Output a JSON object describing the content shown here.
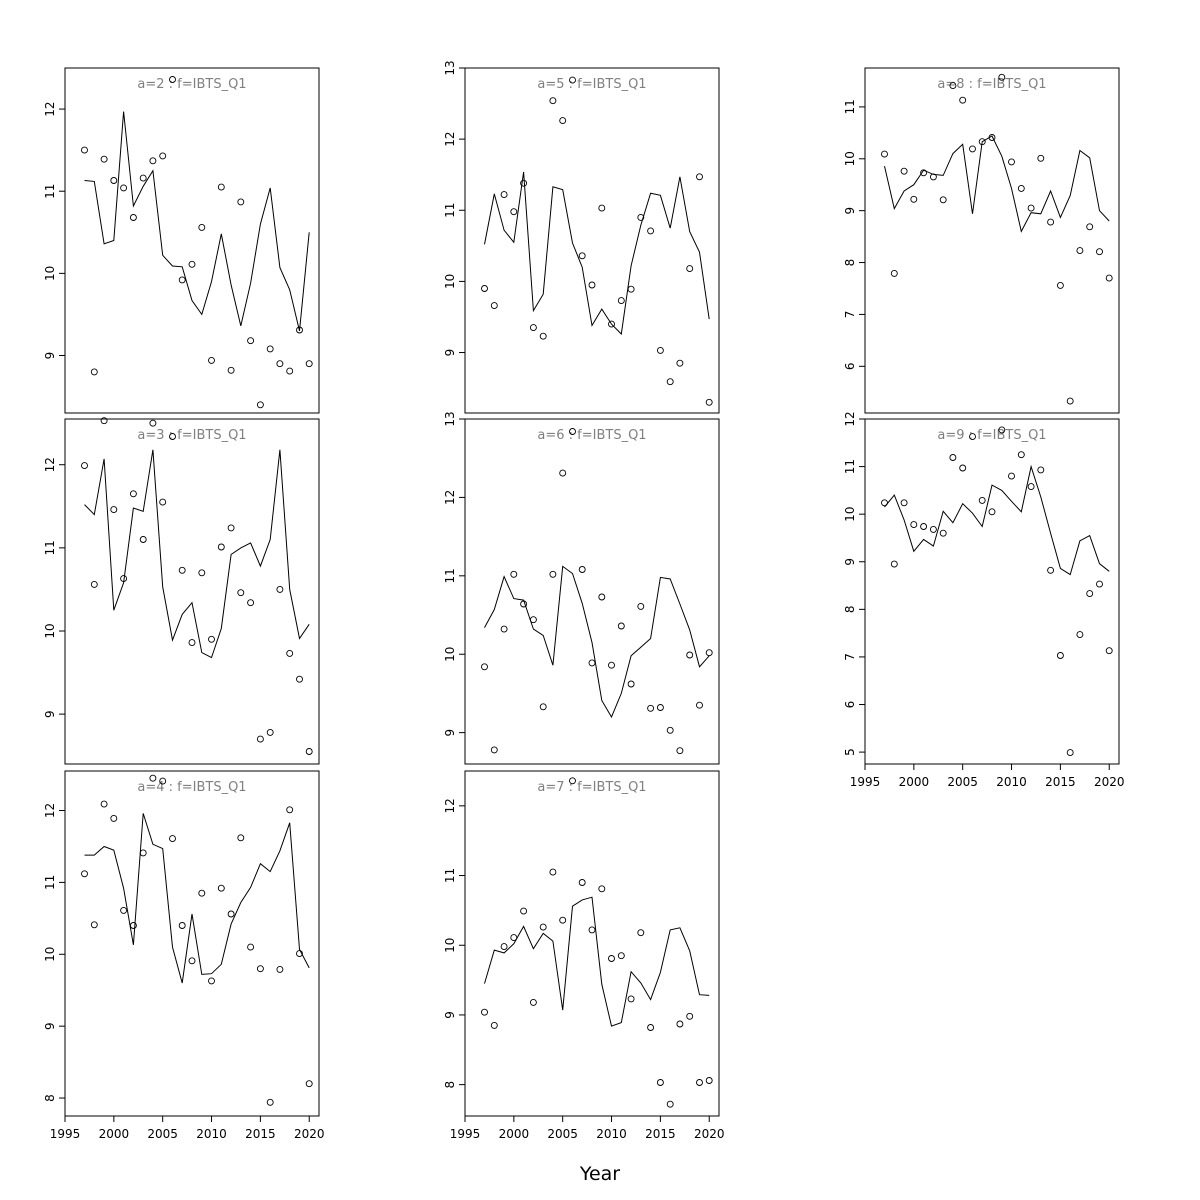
{
  "figure": {
    "xlabel": "Year"
  },
  "chart_data": [
    {
      "type": "line",
      "title": "a=2 : f=IBTS_Q1",
      "xlabel": "",
      "ylabel": "",
      "xlim": [
        1995,
        2021
      ],
      "ylim": [
        8.3,
        12.5
      ],
      "xticks": [
        1995,
        2000,
        2005,
        2010,
        2015,
        2020
      ],
      "yticks": [
        9,
        10,
        11,
        12
      ],
      "show_xticks": false,
      "grid": false,
      "x": [
        1997,
        1998,
        1999,
        2000,
        2001,
        2002,
        2003,
        2004,
        2005,
        2006,
        2007,
        2008,
        2009,
        2010,
        2011,
        2012,
        2013,
        2014,
        2015,
        2016,
        2017,
        2018,
        2019,
        2020
      ],
      "series": [
        {
          "style": "line",
          "values": [
            11.13,
            11.12,
            10.36,
            10.4,
            11.97,
            10.82,
            11.06,
            11.25,
            10.22,
            10.09,
            10.08,
            9.67,
            9.5,
            9.9,
            10.48,
            9.86,
            9.36,
            9.88,
            10.6,
            11.04,
            10.07,
            9.8,
            9.3,
            10.5
          ]
        },
        {
          "style": "points",
          "values": [
            11.5,
            8.8,
            11.39,
            11.13,
            11.04,
            10.68,
            11.16,
            11.37,
            11.43,
            12.36,
            9.92,
            10.11,
            10.56,
            8.94,
            11.05,
            8.82,
            10.87,
            9.18,
            8.4,
            9.08,
            8.9,
            8.81,
            9.31,
            8.9
          ]
        }
      ]
    },
    {
      "type": "line",
      "title": "a=3 : f=IBTS_Q1",
      "xlabel": "",
      "ylabel": "",
      "xlim": [
        1995,
        2021
      ],
      "ylim": [
        8.4,
        12.55
      ],
      "xticks": [
        1995,
        2000,
        2005,
        2010,
        2015,
        2020
      ],
      "yticks": [
        9,
        10,
        11,
        12
      ],
      "show_xticks": false,
      "grid": false,
      "x": [
        1997,
        1998,
        1999,
        2000,
        2001,
        2002,
        2003,
        2004,
        2005,
        2006,
        2007,
        2008,
        2009,
        2010,
        2011,
        2012,
        2013,
        2014,
        2015,
        2016,
        2017,
        2018,
        2019,
        2020
      ],
      "series": [
        {
          "style": "line",
          "values": [
            11.52,
            11.4,
            12.07,
            10.25,
            10.58,
            11.48,
            11.44,
            12.18,
            10.53,
            9.89,
            10.2,
            10.34,
            9.74,
            9.68,
            10.03,
            10.92,
            11.0,
            11.06,
            10.78,
            11.1,
            12.18,
            10.5,
            9.91,
            10.08
          ]
        },
        {
          "style": "points",
          "values": [
            11.99,
            10.56,
            12.53,
            11.46,
            10.63,
            11.65,
            11.1,
            12.5,
            11.55,
            12.34,
            10.73,
            9.86,
            10.7,
            9.9,
            11.01,
            11.24,
            10.46,
            10.34,
            8.7,
            8.78,
            10.5,
            9.73,
            9.42,
            8.55
          ]
        }
      ]
    },
    {
      "type": "line",
      "title": "a=4 : f=IBTS_Q1",
      "xlabel": "",
      "ylabel": "",
      "xlim": [
        1995,
        2021
      ],
      "ylim": [
        7.75,
        12.55
      ],
      "xticks": [
        1995,
        2000,
        2005,
        2010,
        2015,
        2020
      ],
      "yticks": [
        8,
        9,
        10,
        11,
        12
      ],
      "show_xticks": true,
      "grid": false,
      "x": [
        1997,
        1998,
        1999,
        2000,
        2001,
        2002,
        2003,
        2004,
        2005,
        2006,
        2007,
        2008,
        2009,
        2010,
        2011,
        2012,
        2013,
        2014,
        2015,
        2016,
        2017,
        2018,
        2019,
        2020
      ],
      "series": [
        {
          "style": "line",
          "values": [
            11.38,
            11.38,
            11.5,
            11.45,
            10.92,
            10.13,
            11.96,
            11.53,
            11.47,
            10.1,
            9.6,
            10.56,
            9.72,
            9.73,
            9.86,
            10.42,
            10.72,
            10.93,
            11.26,
            11.15,
            11.44,
            11.83,
            10.07,
            9.81
          ]
        },
        {
          "style": "points",
          "values": [
            11.12,
            10.41,
            12.09,
            11.89,
            10.61,
            10.4,
            11.41,
            12.45,
            12.41,
            11.61,
            10.4,
            9.91,
            10.85,
            9.63,
            10.92,
            10.56,
            11.62,
            10.1,
            9.8,
            7.94,
            9.79,
            12.01,
            10.01,
            8.2
          ]
        }
      ]
    },
    {
      "type": "line",
      "title": "a=5 : f=IBTS_Q1",
      "xlabel": "",
      "ylabel": "",
      "xlim": [
        1995,
        2021
      ],
      "ylim": [
        8.15,
        13.0
      ],
      "xticks": [
        1995,
        2000,
        2005,
        2010,
        2015,
        2020
      ],
      "yticks": [
        9,
        10,
        11,
        12,
        13
      ],
      "show_xticks": false,
      "grid": false,
      "x": [
        1997,
        1998,
        1999,
        2000,
        2001,
        2002,
        2003,
        2004,
        2005,
        2006,
        2007,
        2008,
        2009,
        2010,
        2011,
        2012,
        2013,
        2014,
        2015,
        2016,
        2017,
        2018,
        2019,
        2020
      ],
      "series": [
        {
          "style": "line",
          "values": [
            10.52,
            11.23,
            10.72,
            10.55,
            11.54,
            9.59,
            9.82,
            11.33,
            11.29,
            10.54,
            10.2,
            9.38,
            9.61,
            9.4,
            9.26,
            10.22,
            10.79,
            11.24,
            11.21,
            10.75,
            11.47,
            10.7,
            10.41,
            9.47
          ]
        },
        {
          "style": "points",
          "values": [
            9.9,
            9.66,
            11.22,
            10.98,
            11.38,
            9.35,
            9.23,
            12.54,
            12.26,
            12.83,
            10.36,
            9.95,
            11.03,
            9.4,
            9.73,
            9.89,
            10.9,
            10.71,
            9.03,
            8.59,
            8.85,
            10.18,
            11.47,
            8.3
          ]
        }
      ]
    },
    {
      "type": "line",
      "title": "a=6 : f=IBTS_Q1",
      "xlabel": "",
      "ylabel": "",
      "xlim": [
        1995,
        2021
      ],
      "ylim": [
        8.6,
        13.0
      ],
      "xticks": [
        1995,
        2000,
        2005,
        2010,
        2015,
        2020
      ],
      "yticks": [
        9,
        10,
        11,
        12,
        13
      ],
      "show_xticks": false,
      "grid": false,
      "x": [
        1997,
        1998,
        1999,
        2000,
        2001,
        2002,
        2003,
        2004,
        2005,
        2006,
        2007,
        2008,
        2009,
        2010,
        2011,
        2012,
        2013,
        2014,
        2015,
        2016,
        2017,
        2018,
        2019,
        2020
      ],
      "series": [
        {
          "style": "line",
          "values": [
            10.34,
            10.57,
            10.99,
            10.71,
            10.69,
            10.32,
            10.24,
            9.86,
            11.12,
            11.03,
            10.65,
            10.15,
            9.41,
            9.2,
            9.5,
            9.98,
            10.09,
            10.2,
            10.98,
            10.96,
            10.64,
            10.31,
            9.84,
            9.98
          ]
        },
        {
          "style": "points",
          "values": [
            9.84,
            8.78,
            10.32,
            11.02,
            10.64,
            10.44,
            9.33,
            11.02,
            12.31,
            12.84,
            11.08,
            9.89,
            10.73,
            9.86,
            10.36,
            9.62,
            10.61,
            9.31,
            9.32,
            9.03,
            8.77,
            9.99,
            9.35,
            10.02
          ]
        }
      ]
    },
    {
      "type": "line",
      "title": "a=7 : f=IBTS_Q1",
      "xlabel": "",
      "ylabel": "",
      "xlim": [
        1995,
        2021
      ],
      "ylim": [
        7.55,
        12.5
      ],
      "xticks": [
        1995,
        2000,
        2005,
        2010,
        2015,
        2020
      ],
      "yticks": [
        8,
        9,
        10,
        11,
        12
      ],
      "show_xticks": true,
      "grid": false,
      "x": [
        1997,
        1998,
        1999,
        2000,
        2001,
        2002,
        2003,
        2004,
        2005,
        2006,
        2007,
        2008,
        2009,
        2010,
        2011,
        2012,
        2013,
        2014,
        2015,
        2016,
        2017,
        2018,
        2019,
        2020
      ],
      "series": [
        {
          "style": "line",
          "values": [
            9.45,
            9.93,
            9.89,
            10.02,
            10.27,
            9.95,
            10.17,
            10.06,
            9.07,
            10.56,
            10.65,
            10.69,
            9.44,
            8.84,
            8.89,
            9.62,
            9.46,
            9.22,
            9.61,
            10.22,
            10.25,
            9.92,
            9.29,
            9.28
          ]
        },
        {
          "style": "points",
          "values": [
            9.04,
            8.85,
            9.98,
            10.11,
            10.49,
            9.18,
            10.26,
            11.05,
            10.36,
            12.36,
            10.9,
            10.22,
            10.81,
            9.81,
            9.85,
            9.23,
            10.18,
            8.82,
            8.03,
            7.72,
            8.87,
            8.98,
            8.03,
            8.06
          ]
        }
      ]
    },
    {
      "type": "line",
      "title": "a=8 : f=IBTS_Q1",
      "xlabel": "",
      "ylabel": "",
      "xlim": [
        1995,
        2021
      ],
      "ylim": [
        5.1,
        11.75
      ],
      "xticks": [
        1995,
        2000,
        2005,
        2010,
        2015,
        2020
      ],
      "yticks": [
        6,
        7,
        8,
        9,
        10,
        11
      ],
      "show_xticks": false,
      "grid": false,
      "x": [
        1997,
        1998,
        1999,
        2000,
        2001,
        2002,
        2003,
        2004,
        2005,
        2006,
        2007,
        2008,
        2009,
        2010,
        2011,
        2012,
        2013,
        2014,
        2015,
        2016,
        2017,
        2018,
        2019,
        2020
      ],
      "series": [
        {
          "style": "line",
          "values": [
            9.86,
            9.04,
            9.38,
            9.5,
            9.78,
            9.7,
            9.68,
            10.1,
            10.28,
            8.94,
            10.33,
            10.44,
            10.05,
            9.43,
            8.6,
            8.96,
            8.94,
            9.38,
            8.87,
            9.29,
            10.16,
            10.02,
            9.0,
            8.8
          ]
        },
        {
          "style": "points",
          "values": [
            10.09,
            7.79,
            9.76,
            9.22,
            9.73,
            9.65,
            9.21,
            11.41,
            11.13,
            10.19,
            10.33,
            10.41,
            11.57,
            9.94,
            9.43,
            9.05,
            10.01,
            8.78,
            7.56,
            5.33,
            8.23,
            8.69,
            8.21,
            7.7
          ]
        }
      ]
    },
    {
      "type": "line",
      "title": "a=9 : f=IBTS_Q1",
      "xlabel": "",
      "ylabel": "",
      "xlim": [
        1995,
        2021
      ],
      "ylim": [
        4.75,
        12.0
      ],
      "xticks": [
        1995,
        2000,
        2005,
        2010,
        2015,
        2020
      ],
      "yticks": [
        5,
        6,
        7,
        8,
        9,
        10,
        11,
        12
      ],
      "show_xticks": true,
      "grid": false,
      "x": [
        1997,
        1998,
        1999,
        2000,
        2001,
        2002,
        2003,
        2004,
        2005,
        2006,
        2007,
        2008,
        2009,
        2010,
        2011,
        2012,
        2013,
        2014,
        2015,
        2016,
        2017,
        2018,
        2019,
        2020
      ],
      "series": [
        {
          "style": "line",
          "values": [
            10.15,
            10.4,
            9.88,
            9.22,
            9.47,
            9.33,
            10.06,
            9.82,
            10.22,
            10.02,
            9.74,
            10.61,
            10.5,
            10.27,
            10.05,
            11.0,
            10.36,
            9.6,
            8.86,
            8.73,
            9.44,
            9.55,
            8.96,
            8.8
          ]
        },
        {
          "style": "points",
          "values": [
            10.24,
            8.95,
            10.24,
            9.78,
            9.74,
            9.68,
            9.6,
            11.19,
            10.97,
            11.63,
            10.29,
            10.05,
            11.77,
            10.8,
            11.25,
            10.58,
            10.93,
            8.82,
            7.03,
            4.99,
            7.47,
            8.33,
            8.53,
            7.13
          ]
        }
      ]
    }
  ]
}
